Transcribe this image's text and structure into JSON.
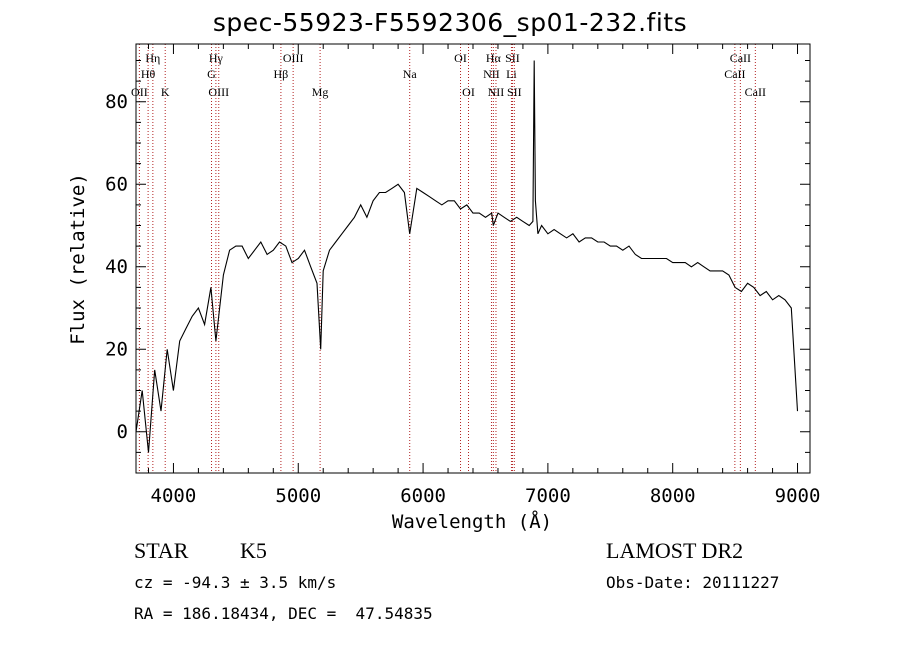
{
  "chart_data": {
    "type": "line",
    "title": "spec-55923-F5592306_sp01-232.fits",
    "xlabel": "Wavelength (Å)",
    "ylabel": "Flux (relative)",
    "xlim": [
      3700,
      9100
    ],
    "ylim": [
      -10,
      94
    ],
    "xticks": [
      "4000",
      "5000",
      "6000",
      "7000",
      "8000",
      "9000"
    ],
    "xtick_values": [
      4000,
      5000,
      6000,
      7000,
      8000,
      9000
    ],
    "yticks": [
      "0",
      "20",
      "40",
      "60",
      "80"
    ],
    "ytick_values": [
      0,
      20,
      40,
      60,
      80
    ],
    "line_color": "#000000",
    "marker_color": "#b22222",
    "series": [
      {
        "x": [
          3700,
          3750,
          3800,
          3850,
          3900,
          3950,
          4000,
          4050,
          4100,
          4150,
          4200,
          4250,
          4300,
          4340,
          4400,
          4450,
          4500,
          4550,
          4600,
          4650,
          4700,
          4750,
          4800,
          4850,
          4900,
          4950,
          5000,
          5050,
          5100,
          5150,
          5180,
          5200,
          5250,
          5300,
          5350,
          5400,
          5450,
          5500,
          5550,
          5600,
          5650,
          5700,
          5750,
          5800,
          5850,
          5893,
          5950,
          6000,
          6050,
          6100,
          6150,
          6200,
          6250,
          6300,
          6350,
          6400,
          6450,
          6500,
          6550,
          6563,
          6600,
          6650,
          6700,
          6750,
          6800,
          6850,
          6880,
          6890,
          6900,
          6920,
          6950,
          7000,
          7050,
          7100,
          7150,
          7200,
          7250,
          7300,
          7350,
          7400,
          7450,
          7500,
          7550,
          7600,
          7650,
          7700,
          7750,
          7800,
          7850,
          7900,
          7950,
          8000,
          8050,
          8100,
          8150,
          8200,
          8250,
          8300,
          8350,
          8400,
          8450,
          8500,
          8550,
          8600,
          8650,
          8700,
          8750,
          8800,
          8850,
          8900,
          8950,
          9000
        ],
        "y": [
          0,
          10,
          -5,
          15,
          5,
          20,
          10,
          22,
          25,
          28,
          30,
          26,
          35,
          22,
          38,
          44,
          45,
          45,
          42,
          44,
          46,
          43,
          44,
          46,
          45,
          41,
          42,
          44,
          40,
          36,
          20,
          39,
          44,
          46,
          48,
          50,
          52,
          55,
          52,
          56,
          58,
          58,
          59,
          60,
          58,
          48,
          59,
          58,
          57,
          56,
          55,
          56,
          56,
          54,
          55,
          53,
          53,
          52,
          53,
          50,
          53,
          52,
          51,
          52,
          51,
          50,
          51,
          90,
          56,
          48,
          50,
          48,
          49,
          48,
          47,
          48,
          46,
          47,
          47,
          46,
          46,
          45,
          45,
          44,
          45,
          43,
          42,
          42,
          42,
          42,
          42,
          41,
          41,
          41,
          40,
          41,
          40,
          39,
          39,
          39,
          38,
          35,
          34,
          36,
          35,
          33,
          34,
          32,
          33,
          32,
          30,
          5
        ]
      }
    ],
    "line_markers": [
      {
        "label": "Hη",
        "wl": 3835,
        "row": 1
      },
      {
        "label": "Hθ",
        "wl": 3797,
        "row": 2
      },
      {
        "label": "OII",
        "wl": 3727,
        "row": 3
      },
      {
        "label": "K",
        "wl": 3934,
        "row": 3
      },
      {
        "label": "Hγ",
        "wl": 4340,
        "row": 1
      },
      {
        "label": "G",
        "wl": 4305,
        "row": 2
      },
      {
        "label": "OIII",
        "wl": 4363,
        "row": 3
      },
      {
        "label": "OIII",
        "wl": 4959,
        "row": 1
      },
      {
        "label": "Hβ",
        "wl": 4861,
        "row": 2
      },
      {
        "label": "Mg",
        "wl": 5175,
        "row": 3
      },
      {
        "label": "Na",
        "wl": 5893,
        "row": 2
      },
      {
        "label": "OI",
        "wl": 6300,
        "row": 1
      },
      {
        "label": "OI",
        "wl": 6364,
        "row": 3
      },
      {
        "label": "Hα",
        "wl": 6563,
        "row": 1
      },
      {
        "label": "SII",
        "wl": 6716,
        "row": 1
      },
      {
        "label": "NII",
        "wl": 6548,
        "row": 2
      },
      {
        "label": "Li",
        "wl": 6708,
        "row": 2
      },
      {
        "label": "NII",
        "wl": 6584,
        "row": 3
      },
      {
        "label": "SII",
        "wl": 6731,
        "row": 3
      },
      {
        "label": "CaII",
        "wl": 8542,
        "row": 1
      },
      {
        "label": "CaII",
        "wl": 8498,
        "row": 2
      },
      {
        "label": "CaII",
        "wl": 8662,
        "row": 3
      }
    ]
  },
  "info": {
    "class_label": "STAR",
    "subclass": "K5",
    "survey": "LAMOST DR2",
    "cz": "cz = -94.3 ± 3.5 km/s",
    "obs_date": "Obs-Date: 20111227",
    "coords": "RA = 186.18434, DEC =  47.54835"
  }
}
